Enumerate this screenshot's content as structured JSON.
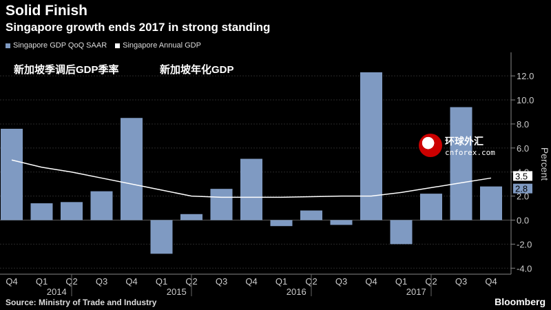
{
  "header": {
    "title": "Solid Finish",
    "subtitle": "Singapore growth ends 2017 in strong standing"
  },
  "legend": [
    {
      "label": "Singapore GDP QoQ SAAR",
      "color": "#7f9ac2"
    },
    {
      "label": "Singapore Annual GDP",
      "color": "#ffffff"
    }
  ],
  "annotations": {
    "zh_left": "新加坡季调后GDP季率",
    "zh_right": "新加坡年化GDP"
  },
  "watermark": {
    "line1": "环球外汇",
    "line2": "cnforex.com"
  },
  "footer": {
    "source": "Source: Ministry of Trade and Industry",
    "brand": "Bloomberg"
  },
  "chart_data": {
    "type": "bar",
    "categories": [
      "Q4",
      "Q1",
      "Q2",
      "Q3",
      "Q4",
      "Q1",
      "Q2",
      "Q3",
      "Q4",
      "Q1",
      "Q2",
      "Q3",
      "Q4",
      "Q1",
      "Q2",
      "Q3",
      "Q4"
    ],
    "year_labels": [
      {
        "label": "2014",
        "index": 2
      },
      {
        "label": "2015",
        "index": 6
      },
      {
        "label": "2016",
        "index": 10
      },
      {
        "label": "2017",
        "index": 14
      }
    ],
    "series": [
      {
        "name": "Singapore GDP QoQ SAAR",
        "type": "bar",
        "color": "#7f9ac2",
        "values": [
          7.6,
          1.4,
          1.5,
          2.4,
          8.5,
          -2.8,
          0.5,
          2.6,
          5.1,
          -0.5,
          0.8,
          -0.4,
          12.3,
          -2.0,
          2.2,
          9.4,
          2.8
        ]
      },
      {
        "name": "Singapore Annual GDP",
        "type": "line",
        "color": "#ffffff",
        "values": [
          5.0,
          4.4,
          4.0,
          3.5,
          3.0,
          2.5,
          2.0,
          1.9,
          1.9,
          1.9,
          1.95,
          2.0,
          2.0,
          2.3,
          2.7,
          3.1,
          3.5
        ]
      }
    ],
    "ylabel": "Percent",
    "ylim": [
      -4.5,
      13.5
    ],
    "yticks": [
      -4.0,
      -2.0,
      0.0,
      2.0,
      4.0,
      6.0,
      8.0,
      10.0,
      12.0
    ],
    "ytick_labels": [
      "-4.0",
      "-2.0",
      "0.0",
      "2.0",
      "4.0",
      "6.0",
      "8.0",
      "10.0",
      "12.0"
    ],
    "end_labels": [
      {
        "text": "3.5",
        "value": 3.5,
        "series": "Singapore Annual GDP"
      },
      {
        "text": "2.8",
        "value": 2.8,
        "series": "Singapore GDP QoQ SAAR"
      }
    ],
    "grid": true,
    "legend_position": "top-left"
  }
}
